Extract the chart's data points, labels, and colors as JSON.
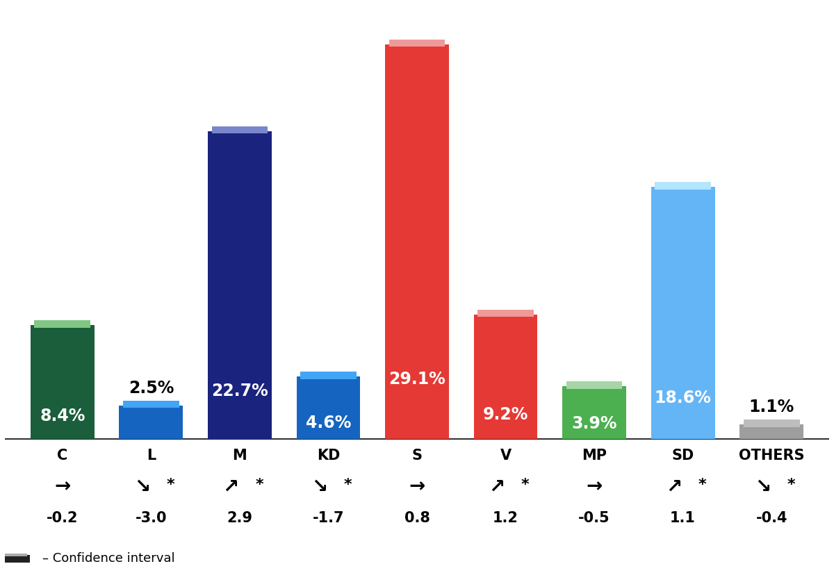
{
  "parties": [
    "C",
    "L",
    "M",
    "KD",
    "S",
    "V",
    "MP",
    "SD",
    "OTHERS"
  ],
  "values": [
    8.4,
    2.5,
    22.7,
    4.6,
    29.1,
    9.2,
    3.9,
    18.6,
    1.1
  ],
  "changes": [
    -0.2,
    -3.0,
    2.9,
    -1.7,
    0.8,
    1.2,
    -0.5,
    1.1,
    -0.4
  ],
  "arrows": [
    "right",
    "down_right",
    "up_right",
    "down_right",
    "right",
    "up_right",
    "right",
    "up_right",
    "down_right"
  ],
  "significant": [
    false,
    true,
    true,
    true,
    false,
    true,
    false,
    true,
    true
  ],
  "bar_colors": [
    "#1b5e3b",
    "#1565c0",
    "#1a237e",
    "#1565c0",
    "#e53935",
    "#e53935",
    "#4caf50",
    "#64b5f6",
    "#9e9e9e"
  ],
  "ci_colors": [
    "#81c784",
    "#42a5f5",
    "#7986cb",
    "#42a5f5",
    "#ef9a9a",
    "#ef9a9a",
    "#a5d6a7",
    "#b3e5fc",
    "#bdbdbd"
  ],
  "label_outside": [
    false,
    true,
    false,
    false,
    false,
    false,
    false,
    false,
    true
  ],
  "background_color": "#ffffff"
}
